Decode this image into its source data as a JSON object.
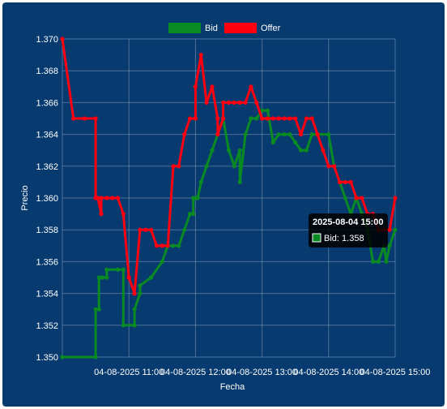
{
  "chart_data": {
    "type": "line",
    "xlabel": "Fecha",
    "ylabel": "Precio",
    "ylim": [
      1.35,
      1.37
    ],
    "y_ticks": [
      "1.350",
      "1.352",
      "1.354",
      "1.356",
      "1.358",
      "1.360",
      "1.362",
      "1.364",
      "1.366",
      "1.368",
      "1.370"
    ],
    "x_ticks": [
      "04-08-2025 11:00",
      "04-08-2025 12:00",
      "04-08-2025 13:00",
      "04-08-2025 14:00",
      "04-08-2025 15:00"
    ],
    "xlim": [
      "2025-08-04 10:00",
      "2025-08-04 15:00"
    ],
    "grid": true,
    "legend_position": "top",
    "series": [
      {
        "name": "Bid",
        "color": "#0a8a22",
        "x": [
          "10:00",
          "10:30",
          "10:30",
          "10:33",
          "10:33",
          "10:36",
          "10:36",
          "10:36",
          "10:40",
          "10:40",
          "10:50",
          "10:50",
          "10:50",
          "10:55",
          "10:55",
          "11:05",
          "11:05",
          "11:05",
          "11:10",
          "11:10",
          "11:20",
          "11:20",
          "11:30",
          "11:35",
          "11:40",
          "11:45",
          "11:50",
          "11:55",
          "11:58",
          "11:58",
          "12:00",
          "12:00",
          "12:02",
          "12:05",
          "12:10",
          "12:15",
          "12:15",
          "12:20",
          "12:25",
          "12:30",
          "12:35",
          "12:40",
          "12:40",
          "12:45",
          "12:50",
          "12:55",
          "13:00",
          "13:05",
          "13:10",
          "13:15",
          "13:20",
          "13:25",
          "13:30",
          "13:35",
          "13:40",
          "13:45",
          "13:50",
          "14:00",
          "14:05",
          "14:10",
          "14:15",
          "14:20",
          "14:25",
          "14:30",
          "14:35",
          "14:40",
          "14:45",
          "14:50",
          "14:52",
          "14:55",
          "15:00"
        ],
        "y": [
          1.35,
          1.35,
          1.353,
          1.353,
          1.355,
          1.355,
          1.355,
          1.355,
          1.355,
          1.3555,
          1.3555,
          1.3555,
          1.3555,
          1.3555,
          1.352,
          1.352,
          1.352,
          1.353,
          1.354,
          1.3545,
          1.355,
          1.355,
          1.356,
          1.357,
          1.357,
          1.357,
          1.358,
          1.359,
          1.359,
          1.36,
          1.36,
          1.36,
          1.36,
          1.361,
          1.362,
          1.363,
          1.363,
          1.364,
          1.365,
          1.363,
          1.362,
          1.363,
          1.361,
          1.364,
          1.365,
          1.365,
          1.3655,
          1.3655,
          1.3635,
          1.364,
          1.364,
          1.364,
          1.3635,
          1.363,
          1.363,
          1.364,
          1.364,
          1.364,
          1.362,
          1.361,
          1.36,
          1.359,
          1.36,
          1.359,
          1.358,
          1.356,
          1.356,
          1.357,
          1.356,
          1.357,
          1.358
        ]
      },
      {
        "name": "Offer",
        "color": "#ff0011",
        "x": [
          "10:00",
          "10:10",
          "10:20",
          "10:30",
          "10:30",
          "10:32",
          "10:32",
          "10:35",
          "10:35",
          "10:40",
          "10:45",
          "10:50",
          "10:55",
          "11:00",
          "11:00",
          "11:05",
          "11:05",
          "11:10",
          "11:10",
          "11:15",
          "11:20",
          "11:25",
          "11:30",
          "11:30",
          "11:35",
          "11:40",
          "11:45",
          "11:50",
          "11:55",
          "12:00",
          "12:00",
          "12:05",
          "12:10",
          "12:15",
          "12:20",
          "12:20",
          "12:25",
          "12:25",
          "12:30",
          "12:35",
          "12:40",
          "12:45",
          "12:50",
          "12:55",
          "13:00",
          "13:05",
          "13:10",
          "13:15",
          "13:20",
          "13:25",
          "13:30",
          "13:35",
          "13:40",
          "13:45",
          "13:50",
          "13:55",
          "14:00",
          "14:05",
          "14:10",
          "14:15",
          "14:20",
          "14:25",
          "14:30",
          "14:35",
          "14:40",
          "14:45",
          "14:50",
          "14:55",
          "15:00"
        ],
        "y": [
          1.37,
          1.365,
          1.365,
          1.365,
          1.36,
          1.36,
          1.36,
          1.359,
          1.36,
          1.36,
          1.36,
          1.36,
          1.359,
          1.355,
          1.355,
          1.354,
          1.354,
          1.358,
          1.358,
          1.358,
          1.358,
          1.357,
          1.357,
          1.357,
          1.357,
          1.362,
          1.362,
          1.364,
          1.365,
          1.365,
          1.367,
          1.369,
          1.366,
          1.367,
          1.365,
          1.364,
          1.365,
          1.366,
          1.366,
          1.366,
          1.366,
          1.366,
          1.367,
          1.366,
          1.365,
          1.365,
          1.365,
          1.365,
          1.365,
          1.365,
          1.365,
          1.364,
          1.365,
          1.365,
          1.364,
          1.363,
          1.362,
          1.362,
          1.361,
          1.361,
          1.361,
          1.36,
          1.36,
          1.359,
          1.359,
          1.358,
          1.358,
          1.358,
          1.36
        ]
      }
    ]
  },
  "tooltip": {
    "title": "2025-08-04 15:00",
    "series_name": "Bid",
    "value": "1.358"
  }
}
